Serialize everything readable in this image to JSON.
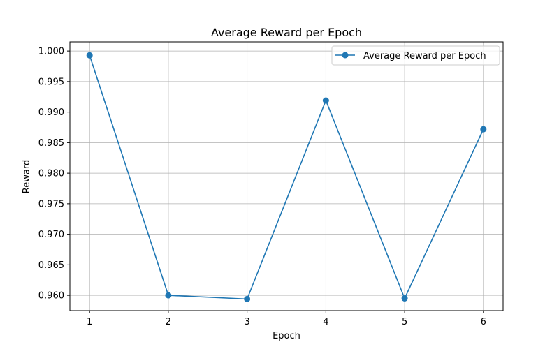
{
  "chart_data": {
    "type": "line",
    "title": "Average Reward per Epoch",
    "xlabel": "Epoch",
    "ylabel": "Reward",
    "x": [
      1,
      2,
      3,
      4,
      5,
      6
    ],
    "xticks": [
      "1",
      "2",
      "3",
      "4",
      "5",
      "6"
    ],
    "xlim": [
      0.75,
      6.25
    ],
    "ylim": [
      0.9575,
      1.0015
    ],
    "yticks": [
      "0.960",
      "0.965",
      "0.970",
      "0.975",
      "0.980",
      "0.985",
      "0.990",
      "0.995",
      "1.000"
    ],
    "grid": true,
    "legend_position": "top-right",
    "series": [
      {
        "name": "Average Reward per Epoch",
        "color": "#1f77b4",
        "marker": "circle",
        "values": [
          0.9993,
          0.96,
          0.9594,
          0.9919,
          0.9595,
          0.9872
        ]
      }
    ]
  }
}
